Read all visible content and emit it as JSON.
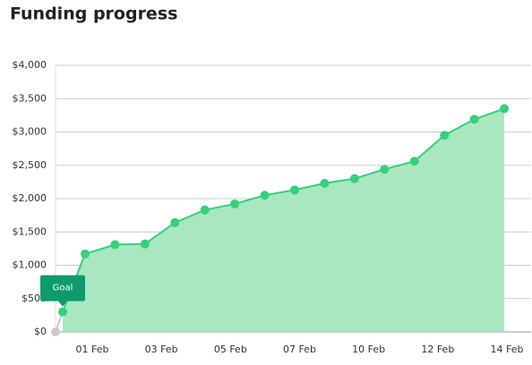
{
  "chart_data": {
    "type": "line",
    "title": "Funding progress",
    "xtick_labels": [
      "01 Feb",
      "03 Feb",
      "05 Feb",
      "07 Feb",
      "10 Feb",
      "12 Feb",
      "14 Feb"
    ],
    "series": [
      {
        "color": "#36d07a",
        "start_color": "#c9c9c9",
        "fill": "#a8e7c0",
        "values": [
          0,
          300,
          1170,
          1310,
          1320,
          1640,
          1830,
          1920,
          2050,
          2130,
          2230,
          2300,
          2440,
          2560,
          2950,
          3190,
          3350
        ]
      }
    ],
    "annotation": {
      "text": "Goal",
      "index": 1,
      "color": "#0d9b6a"
    },
    "ylim": [
      0,
      4000
    ],
    "yticks": [
      {
        "value": 0,
        "label": "$0"
      },
      {
        "value": 500,
        "label": "$500"
      },
      {
        "value": 1000,
        "label": "$1,000"
      },
      {
        "value": 1500,
        "label": "$1,500"
      },
      {
        "value": 2000,
        "label": "$2,000"
      },
      {
        "value": 2500,
        "label": "$2,500"
      },
      {
        "value": 3000,
        "label": "$3,000"
      },
      {
        "value": 3500,
        "label": "$3,500"
      },
      {
        "value": 4000,
        "label": "$4,000"
      }
    ],
    "grid": true
  }
}
